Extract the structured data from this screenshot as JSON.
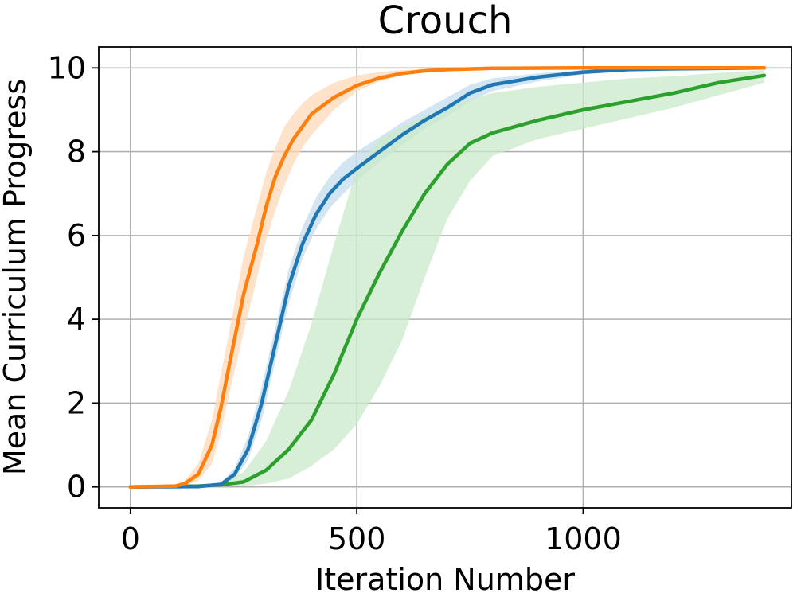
{
  "chart_data": {
    "type": "line",
    "title": "Crouch",
    "xlabel": "Iteration Number",
    "ylabel": "Mean Curriculum Progress",
    "xlim": [
      -70,
      1460
    ],
    "ylim": [
      -0.5,
      10.5
    ],
    "xticks": [
      0,
      500,
      1000
    ],
    "yticks": [
      0,
      2,
      4,
      6,
      8,
      10
    ],
    "grid": true,
    "legend": "none",
    "series": [
      {
        "color": "#ff7f0e",
        "band_color": "#ffd8b8",
        "x": [
          0,
          100,
          120,
          150,
          180,
          200,
          220,
          250,
          280,
          300,
          320,
          340,
          360,
          380,
          400,
          450,
          500,
          550,
          600,
          650,
          700,
          800,
          1000,
          1400
        ],
        "y": [
          0,
          0.02,
          0.08,
          0.3,
          1.0,
          1.9,
          3.0,
          4.6,
          5.8,
          6.7,
          7.4,
          7.9,
          8.3,
          8.6,
          8.9,
          9.3,
          9.58,
          9.76,
          9.87,
          9.93,
          9.96,
          9.99,
          10.0,
          10.0
        ],
        "lower": [
          0,
          0.01,
          0.03,
          0.15,
          0.55,
          1.3,
          2.3,
          3.7,
          5.0,
          5.9,
          6.6,
          7.2,
          7.7,
          8.1,
          8.4,
          9.0,
          9.45,
          9.68,
          9.82,
          9.9,
          9.94,
          9.98,
          10.0,
          10.0
        ],
        "upper": [
          0,
          0.04,
          0.15,
          0.55,
          1.6,
          2.7,
          3.8,
          5.5,
          6.7,
          7.5,
          8.1,
          8.6,
          8.9,
          9.15,
          9.35,
          9.65,
          9.82,
          9.9,
          9.95,
          9.97,
          9.99,
          10.0,
          10.0,
          10.0
        ]
      },
      {
        "color": "#1f77b4",
        "band_color": "#c6dcee",
        "x": [
          0,
          150,
          200,
          230,
          260,
          290,
          320,
          350,
          380,
          410,
          440,
          470,
          500,
          550,
          600,
          650,
          700,
          750,
          800,
          900,
          1000,
          1100,
          1200,
          1400
        ],
        "y": [
          0,
          0.01,
          0.06,
          0.3,
          0.9,
          2.0,
          3.4,
          4.8,
          5.8,
          6.5,
          7.0,
          7.35,
          7.6,
          8.0,
          8.4,
          8.75,
          9.05,
          9.4,
          9.6,
          9.78,
          9.9,
          9.96,
          9.98,
          10.0
        ],
        "lower": [
          0,
          0.0,
          0.03,
          0.18,
          0.65,
          1.6,
          3.0,
          4.4,
          5.45,
          6.15,
          6.65,
          7.0,
          7.3,
          7.75,
          8.15,
          8.55,
          8.85,
          9.2,
          9.45,
          9.68,
          9.84,
          9.93,
          9.97,
          9.99
        ],
        "upper": [
          0,
          0.02,
          0.1,
          0.45,
          1.2,
          2.4,
          3.8,
          5.2,
          6.2,
          6.9,
          7.4,
          7.75,
          8.0,
          8.35,
          8.7,
          9.0,
          9.3,
          9.6,
          9.75,
          9.87,
          9.95,
          9.98,
          9.99,
          10.0
        ]
      },
      {
        "color": "#2ca02c",
        "band_color": "#c9e9c9",
        "x": [
          0,
          150,
          200,
          250,
          300,
          350,
          400,
          450,
          500,
          550,
          600,
          650,
          700,
          750,
          800,
          900,
          1000,
          1100,
          1200,
          1300,
          1400
        ],
        "y": [
          0,
          0.02,
          0.05,
          0.12,
          0.4,
          0.9,
          1.6,
          2.7,
          4.0,
          5.1,
          6.1,
          7.0,
          7.7,
          8.2,
          8.45,
          8.75,
          9.0,
          9.2,
          9.4,
          9.65,
          9.82
        ],
        "lower": [
          0,
          0.0,
          0.01,
          0.02,
          0.08,
          0.2,
          0.5,
          0.9,
          1.5,
          2.4,
          3.5,
          5.0,
          6.4,
          7.3,
          7.9,
          8.3,
          8.55,
          8.8,
          9.05,
          9.35,
          9.65
        ],
        "upper": [
          0,
          0.04,
          0.12,
          0.35,
          1.1,
          2.3,
          3.9,
          5.8,
          7.6,
          8.3,
          8.6,
          8.85,
          9.05,
          9.25,
          9.4,
          9.55,
          9.65,
          9.75,
          9.8,
          9.88,
          9.95
        ]
      }
    ]
  }
}
